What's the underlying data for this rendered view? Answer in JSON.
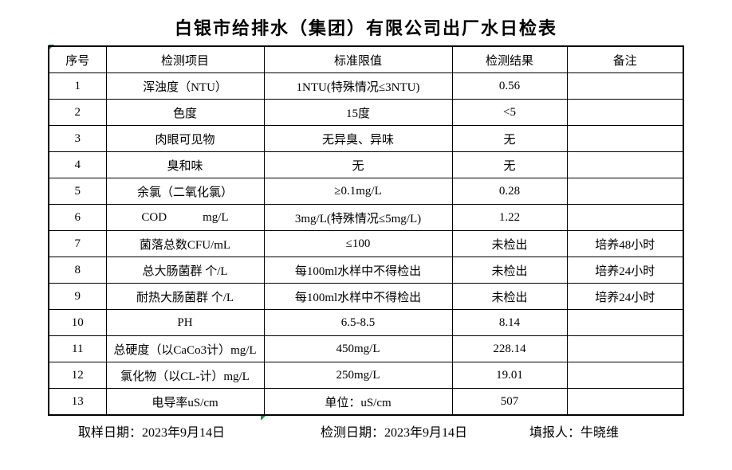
{
  "title": "白银市给排水（集团）有限公司出厂水日检表",
  "table": {
    "headers": [
      "序号",
      "检测项目",
      "标准限值",
      "检测结果",
      "备注"
    ],
    "rows": [
      {
        "no": "1",
        "item": "浑浊度（NTU）",
        "limit": "1NTU(特殊情况≤3NTU)",
        "result": "0.56",
        "remark": ""
      },
      {
        "no": "2",
        "item": "色度",
        "limit": "15度",
        "result": "<5",
        "remark": ""
      },
      {
        "no": "3",
        "item": "肉眼可见物",
        "limit": "无异臭、异味",
        "result": "无",
        "remark": ""
      },
      {
        "no": "4",
        "item": "臭和味",
        "limit": "无",
        "result": "无",
        "remark": ""
      },
      {
        "no": "5",
        "item": "余氯（二氧化氯）",
        "limit": "≥0.1mg/L",
        "result": "0.28",
        "remark": ""
      },
      {
        "no": "6",
        "item": "COD            mg/L",
        "limit": "3mg/L(特殊情况≤5mg/L)",
        "result": "1.22",
        "remark": ""
      },
      {
        "no": "7",
        "item": "菌落总数CFU/mL",
        "limit": "≤100",
        "result": "未检出",
        "remark": "培养48小时"
      },
      {
        "no": "8",
        "item": "总大肠菌群 个/L",
        "limit": "每100ml水样中不得检出",
        "result": "未检出",
        "remark": "培养24小时"
      },
      {
        "no": "9",
        "item": "耐热大肠菌群 个/L",
        "limit": "每100ml水样中不得检出",
        "result": "未检出",
        "remark": "培养24小时"
      },
      {
        "no": "10",
        "item": "PH",
        "limit": "6.5-8.5",
        "result": "8.14",
        "remark": ""
      },
      {
        "no": "11",
        "item": "总硬度（以CaCo3计）mg/L",
        "limit": "450mg/L",
        "result": "228.14",
        "remark": ""
      },
      {
        "no": "12",
        "item": "氯化物（以CL-计）mg/L",
        "limit": "250mg/L",
        "result": "19.01",
        "remark": ""
      },
      {
        "no": "13",
        "item": "电导率uS/cm",
        "limit": "单位：uS/cm",
        "result": "507",
        "remark": ""
      }
    ]
  },
  "footer": {
    "sample_date": "取样日期：2023年9月14日",
    "test_date": "检测日期：2023年9月14日",
    "reporter": "填报人：牛晓维"
  },
  "colors": {
    "marker_green": "#2d8c3c",
    "border": "#000000",
    "background": "#ffffff"
  }
}
